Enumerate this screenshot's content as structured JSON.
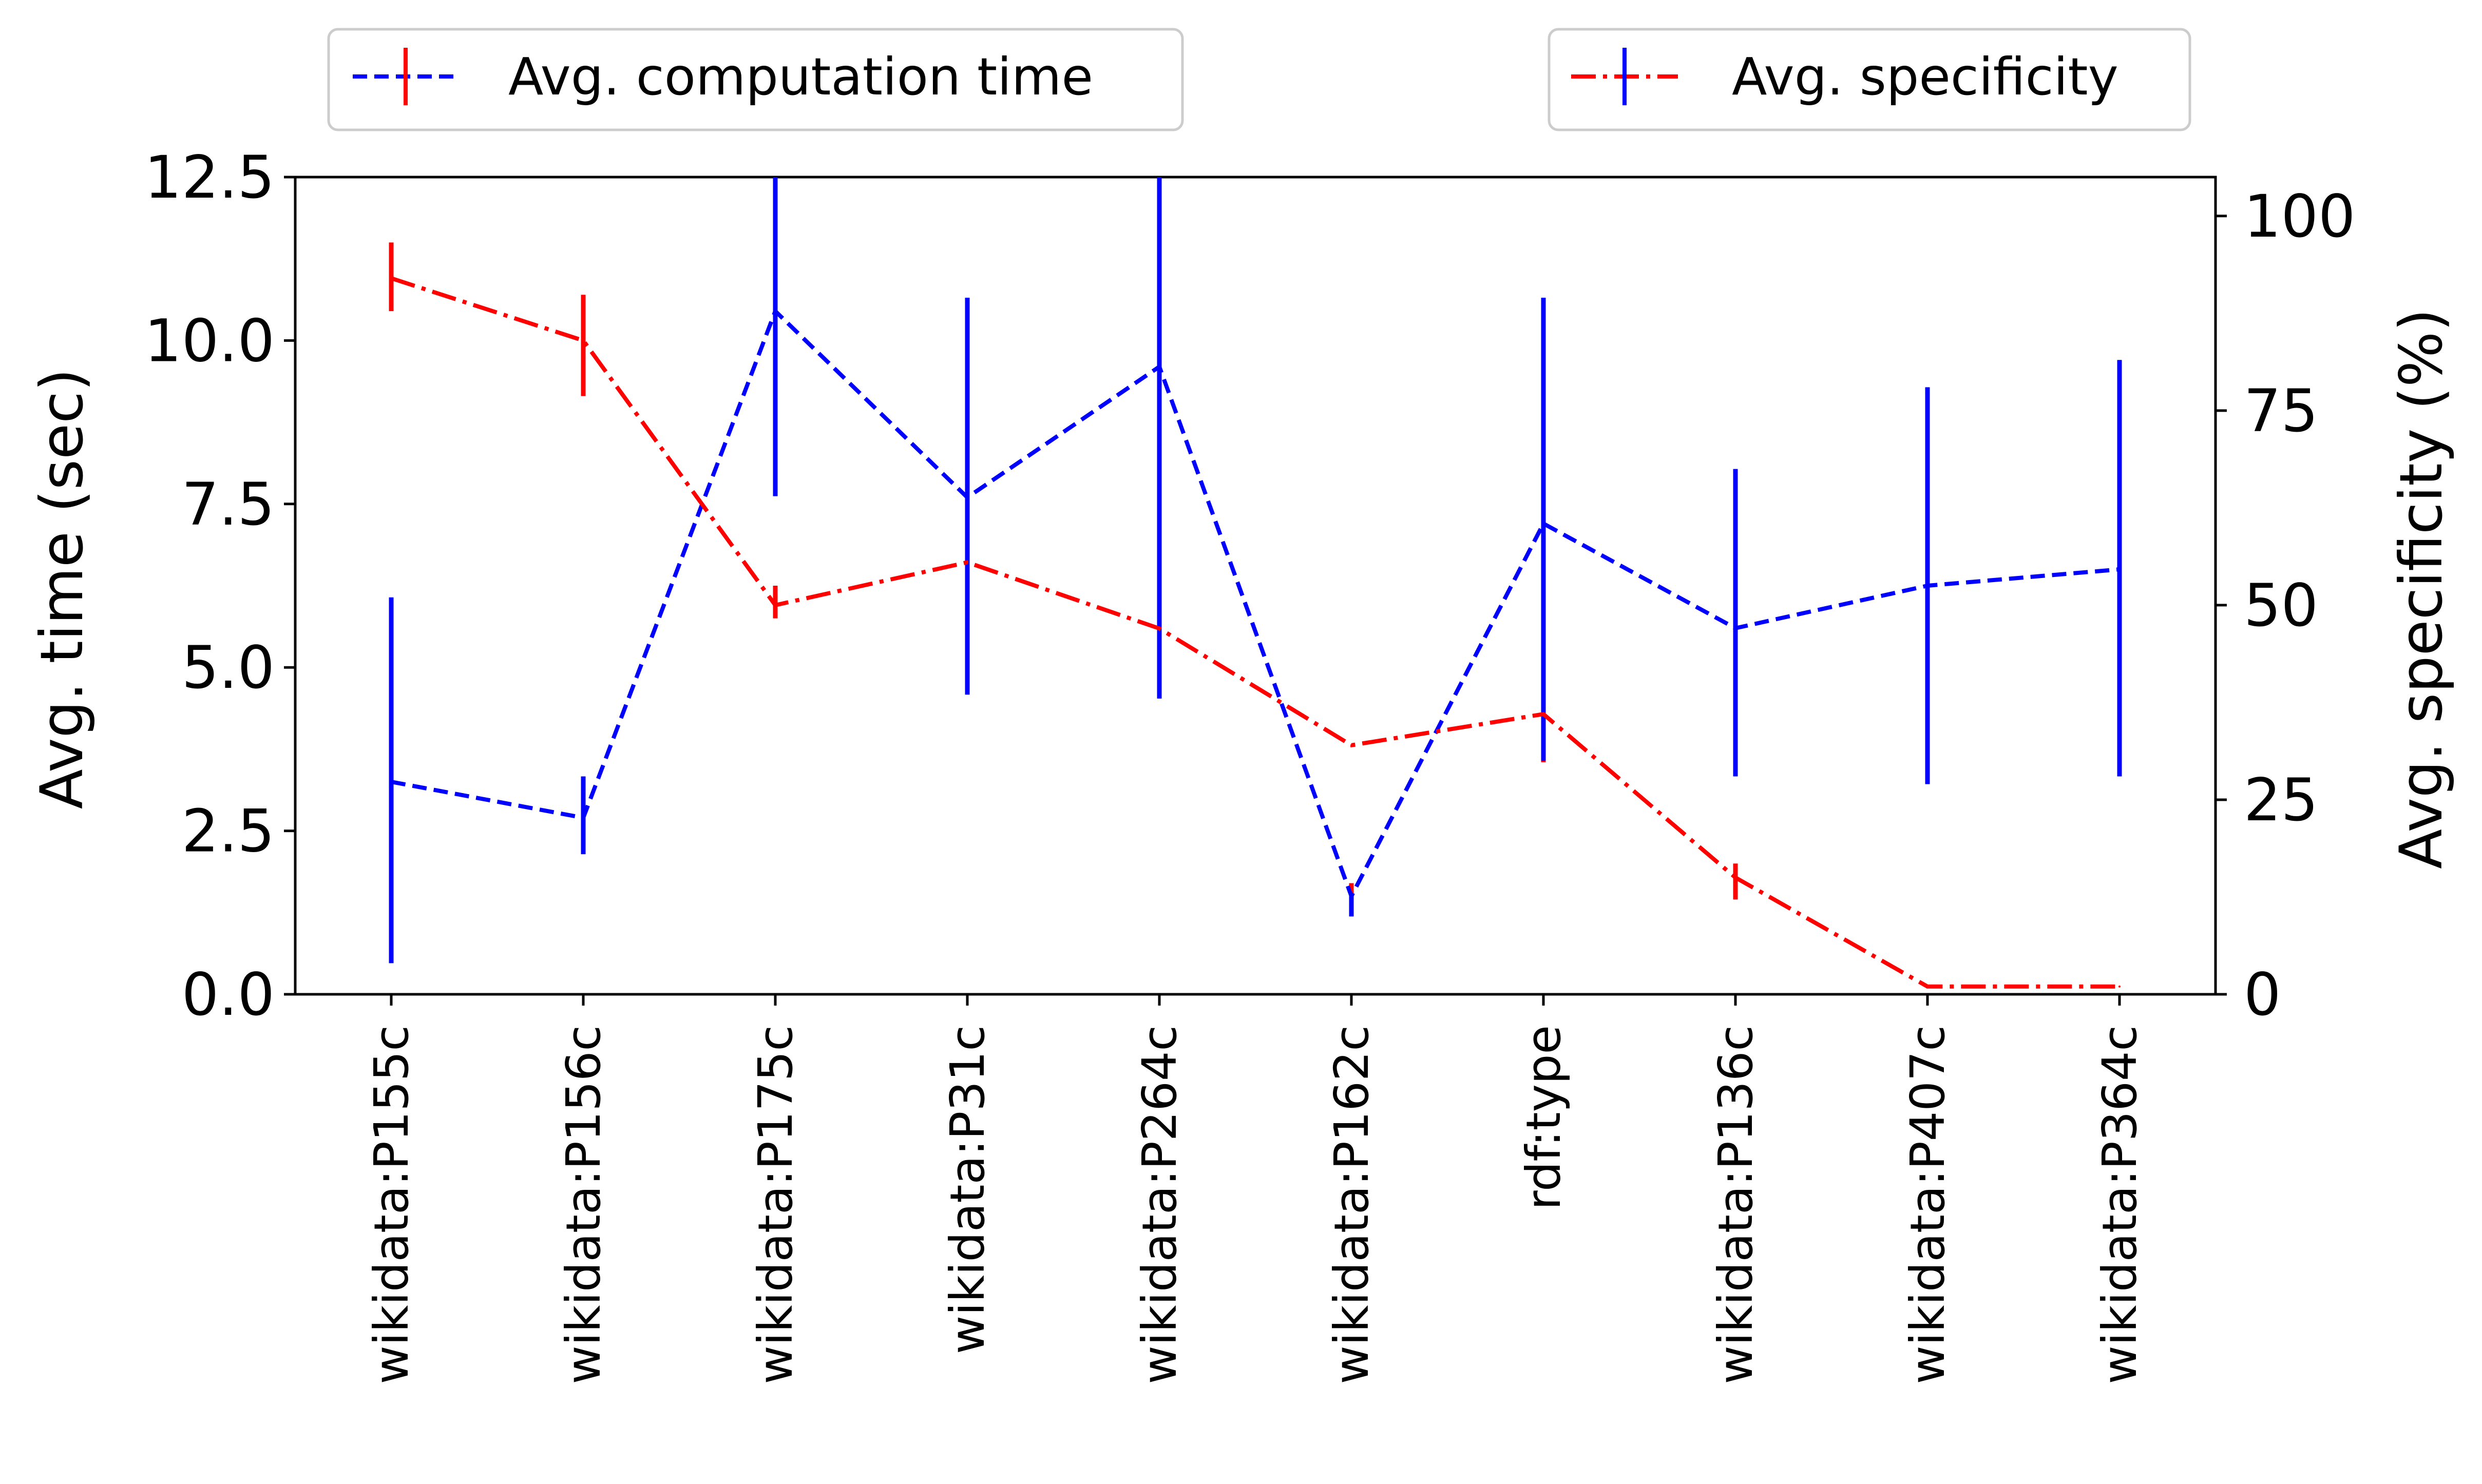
{
  "chart_data": {
    "type": "line",
    "categories": [
      "wikidata:P155c",
      "wikidata:P156c",
      "wikidata:P175c",
      "wikidata:P31c",
      "wikidata:P264c",
      "wikidata:P162c",
      "rdf:type",
      "wikidata:P136c",
      "wikidata:P407c",
      "wikidata:P364c"
    ],
    "ylabel": "Avg. time (sec)",
    "ylabel_right": "Avg. specificity (%)",
    "ylim": [
      0,
      12.5
    ],
    "ylim_right": [
      0,
      105
    ],
    "yticks": [
      "0.0",
      "2.5",
      "5.0",
      "7.5",
      "10.0",
      "12.5"
    ],
    "yticks_right": [
      "0",
      "25",
      "50",
      "75",
      "100"
    ],
    "grid": false,
    "series": [
      {
        "name": "Avg. computation time",
        "axis": "left",
        "color": "#0000ff",
        "linestyle": "dashed",
        "values": [
          3.25,
          2.7,
          10.45,
          7.6,
          9.6,
          1.5,
          7.2,
          5.6,
          6.25,
          6.5
        ],
        "error_low": [
          10.45,
          9.15,
          5.75,
          5.85,
          4.75,
          1.4,
          3.55,
          1.45,
          null,
          null
        ],
        "error_high": [
          11.5,
          10.7,
          6.25,
          7.45,
          5.8,
          1.7,
          5.1,
          2.0,
          null,
          null
        ]
      },
      {
        "name": "Avg. specificity",
        "axis": "right",
        "color": "#ff0000",
        "linestyle": "dashdot",
        "values": [
          92,
          84,
          50,
          55.5,
          47,
          32,
          36,
          15,
          1,
          1
        ],
        "error_low": [
          4,
          18,
          64,
          38.5,
          38,
          10,
          30,
          28,
          27,
          28
        ],
        "error_high": [
          51,
          28,
          105,
          89.5,
          105,
          13,
          89.5,
          67.5,
          78,
          81.5
        ]
      }
    ],
    "legend": [
      {
        "label": "Avg. computation time",
        "position": "top-left"
      },
      {
        "label": "Avg. specificity",
        "position": "top-right"
      }
    ]
  }
}
